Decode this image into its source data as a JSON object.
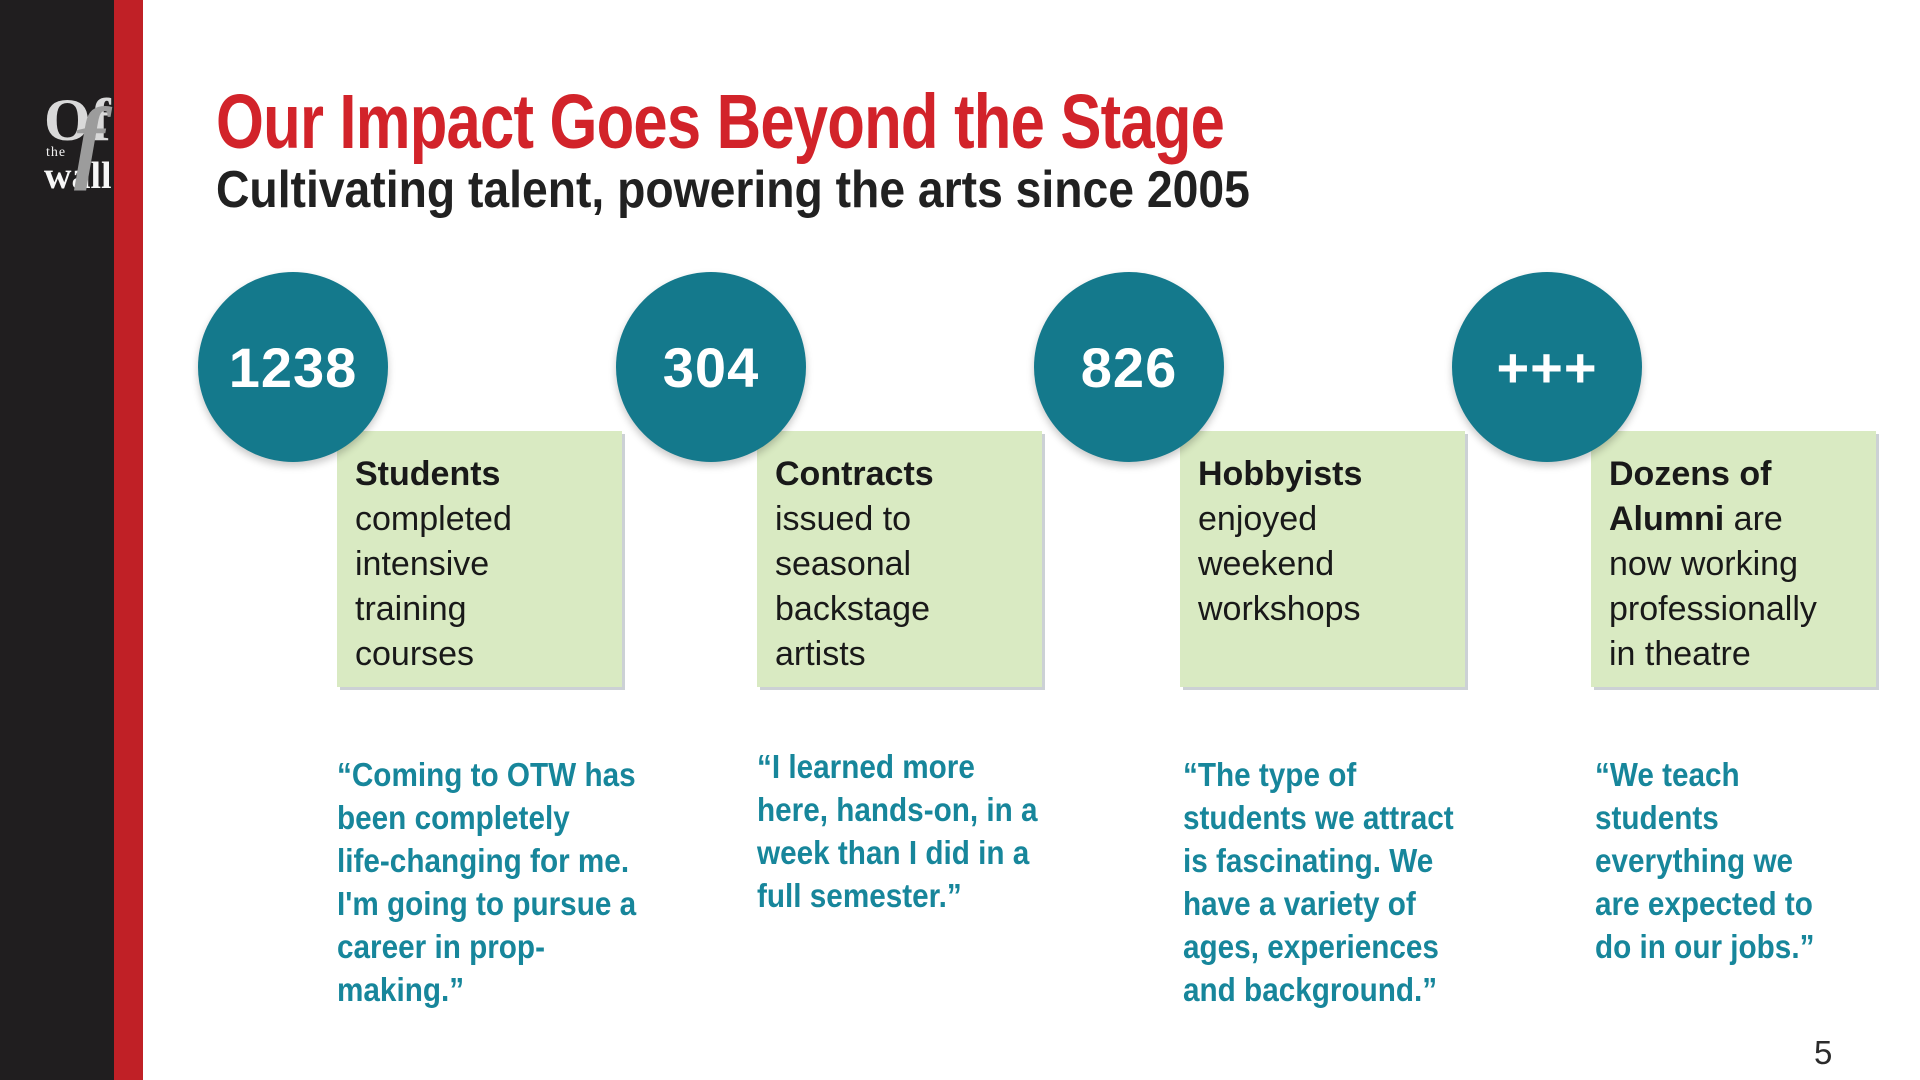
{
  "logo": {
    "of": "Of",
    "f": "f",
    "the": "the",
    "wall": "wall"
  },
  "header": {
    "title": "Our Impact Goes Beyond the Stage",
    "subtitle": "Cultivating talent, powering the arts since 2005"
  },
  "stats": [
    {
      "value": "1238",
      "label_bold": "Students",
      "label_rest": "\ncompleted\nintensive\ntraining\ncourses",
      "quote": "“Coming to OTW has\nbeen completely\nlife-changing for me.\nI'm going to pursue a\ncareer in prop-\nmaking.”"
    },
    {
      "value": "304",
      "label_bold": "Contracts",
      "label_rest": "\nissued to\nseasonal\nbackstage\nartists",
      "quote": "“I learned more\nhere, hands-on, in a\nweek than I did in a\nfull semester.”"
    },
    {
      "value": "826",
      "label_bold": "Hobbyists",
      "label_rest": "\nenjoyed\nweekend\nworkshops",
      "quote": "“The type of\nstudents we attract\nis fascinating. We\nhave a variety of\nages, experiences\nand background.”"
    },
    {
      "value": "+++",
      "label_bold": "Dozens of\nAlumni",
      "label_rest": " are\nnow working\nprofessionally\nin theatre",
      "quote": "“We teach\nstudents\neverything we\nare expected to\ndo in our jobs.”"
    }
  ],
  "footer": {
    "page_number": "5"
  },
  "theme": {
    "red": "#D2232A",
    "stripe-red": "#C02026",
    "sidebar-black": "#201E1F",
    "teal": "#14798C",
    "quote-teal": "#17869B",
    "green": "#D9EAC2",
    "text-dark": "#212121"
  }
}
